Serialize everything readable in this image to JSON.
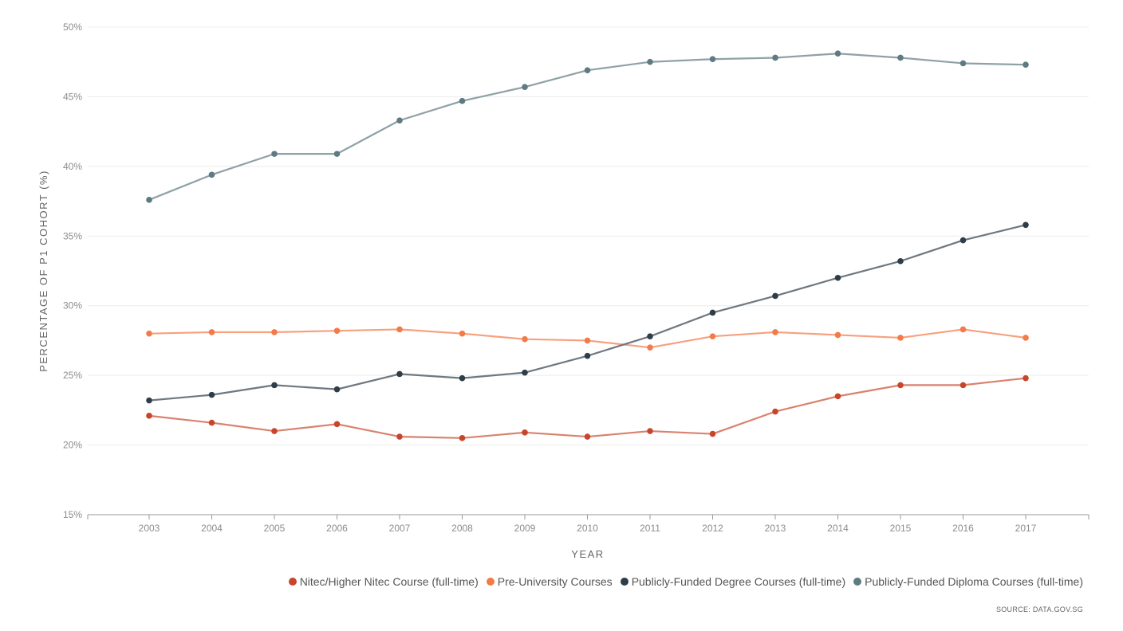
{
  "chart_data": {
    "type": "line",
    "title": "",
    "xlabel": "YEAR",
    "ylabel": "PERCENTAGE OF P1 COHORT (%)",
    "x": [
      "2003",
      "2004",
      "2005",
      "2006",
      "2007",
      "2008",
      "2009",
      "2010",
      "2011",
      "2012",
      "2013",
      "2014",
      "2015",
      "2016",
      "2017"
    ],
    "ylim": [
      15,
      50
    ],
    "yticks": [
      "15%",
      "20%",
      "25%",
      "30%",
      "35%",
      "40%",
      "45%",
      "50%"
    ],
    "ytick_values": [
      15,
      20,
      25,
      30,
      35,
      40,
      45,
      50
    ],
    "grid": true,
    "legend_position": "bottom-right",
    "series": [
      {
        "name": "Nitec/Higher Nitec Course (full-time)",
        "color": "#c8452c",
        "line_color": "#d9826e",
        "values": [
          22.1,
          21.6,
          21.0,
          21.5,
          20.6,
          20.5,
          20.9,
          20.6,
          21.0,
          20.8,
          22.4,
          23.5,
          24.3,
          24.3,
          24.8
        ]
      },
      {
        "name": "Pre-University Courses",
        "color": "#f47a48",
        "line_color": "#f7a07e",
        "values": [
          28.0,
          28.1,
          28.1,
          28.2,
          28.3,
          28.0,
          27.6,
          27.5,
          27.0,
          27.8,
          28.1,
          27.9,
          27.7,
          28.3,
          27.7
        ]
      },
      {
        "name": "Publicly-Funded Degree Courses (full-time)",
        "color": "#2e3d48",
        "line_color": "#6f7880",
        "values": [
          23.2,
          23.6,
          24.3,
          24.0,
          25.1,
          24.8,
          25.2,
          26.4,
          27.8,
          29.5,
          30.7,
          32.0,
          33.2,
          34.7,
          35.8
        ]
      },
      {
        "name": "Publicly-Funded Diploma Courses (full-time)",
        "color": "#5f7a82",
        "line_color": "#8fa1a6",
        "values": [
          37.6,
          39.4,
          40.9,
          40.9,
          43.3,
          44.7,
          45.7,
          46.9,
          47.5,
          47.7,
          47.8,
          48.1,
          47.8,
          47.4,
          47.3
        ]
      }
    ],
    "source": "SOURCE: DATA.GOV.SG"
  }
}
